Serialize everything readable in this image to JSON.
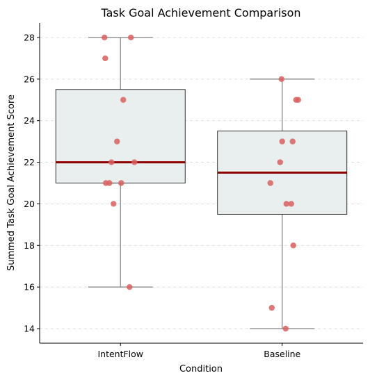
{
  "chart_data": {
    "type": "box",
    "title": "Task Goal Achievement Comparison",
    "xlabel": "Condition",
    "ylabel": "Summed Task Goal Achievement Score",
    "categories": [
      "IntentFlow",
      "Baseline"
    ],
    "yticks": [
      14,
      16,
      18,
      20,
      22,
      24,
      26,
      28
    ],
    "ylim": [
      13.3,
      28.7
    ],
    "grid": "horizontal-dashed",
    "boxes": [
      {
        "category": "IntentFlow",
        "whisker_low": 16,
        "q1": 21,
        "median": 22,
        "q3": 25.5,
        "whisker_high": 28
      },
      {
        "category": "Baseline",
        "whisker_low": 14,
        "q1": 19.5,
        "median": 21.5,
        "q3": 23.5,
        "whisker_high": 26
      }
    ],
    "points": [
      {
        "category": "IntentFlow",
        "values": [
          28,
          28,
          27,
          25,
          23,
          22,
          22,
          21,
          21,
          21,
          20,
          16
        ]
      },
      {
        "category": "Baseline",
        "values": [
          26,
          25,
          25,
          23,
          23,
          22,
          21,
          20,
          20,
          18,
          15,
          14
        ]
      }
    ],
    "colors": {
      "box_fill": "#e9eeef",
      "box_edge": "#1a1a1a",
      "whisker": "#8a8a8a",
      "median": "#8b0000",
      "point": "#d95f5f",
      "grid": "#d9d9d9"
    }
  }
}
